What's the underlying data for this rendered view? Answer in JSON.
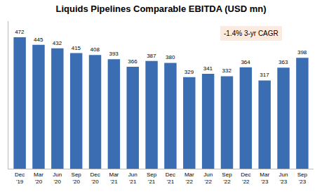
{
  "chart_data": {
    "type": "bar",
    "title": "Liquids Pipelines Comparable EBITDA (USD mn)",
    "categories": [
      "Dec\n'19",
      "Mar\n'20",
      "Jun\n'20",
      "Sep\n'20",
      "Dec\n'20",
      "Mar\n'21",
      "Jun\n'21",
      "Sep\n'21",
      "Dec\n'21",
      "Mar\n'22",
      "Jun\n'22",
      "Sep\n'22",
      "Dec\n'22",
      "Mar\n'23",
      "Jun\n'23",
      "Sep\n'23"
    ],
    "values": [
      472,
      445,
      432,
      415,
      408,
      393,
      366,
      387,
      380,
      329,
      341,
      332,
      364,
      317,
      363,
      398
    ],
    "color": "#3B6DB3",
    "ylim": [
      0,
      530
    ],
    "data_labels": true,
    "tick_labels": "x",
    "grid": false,
    "annotation": "-1.4% 3-yr CAGR"
  }
}
